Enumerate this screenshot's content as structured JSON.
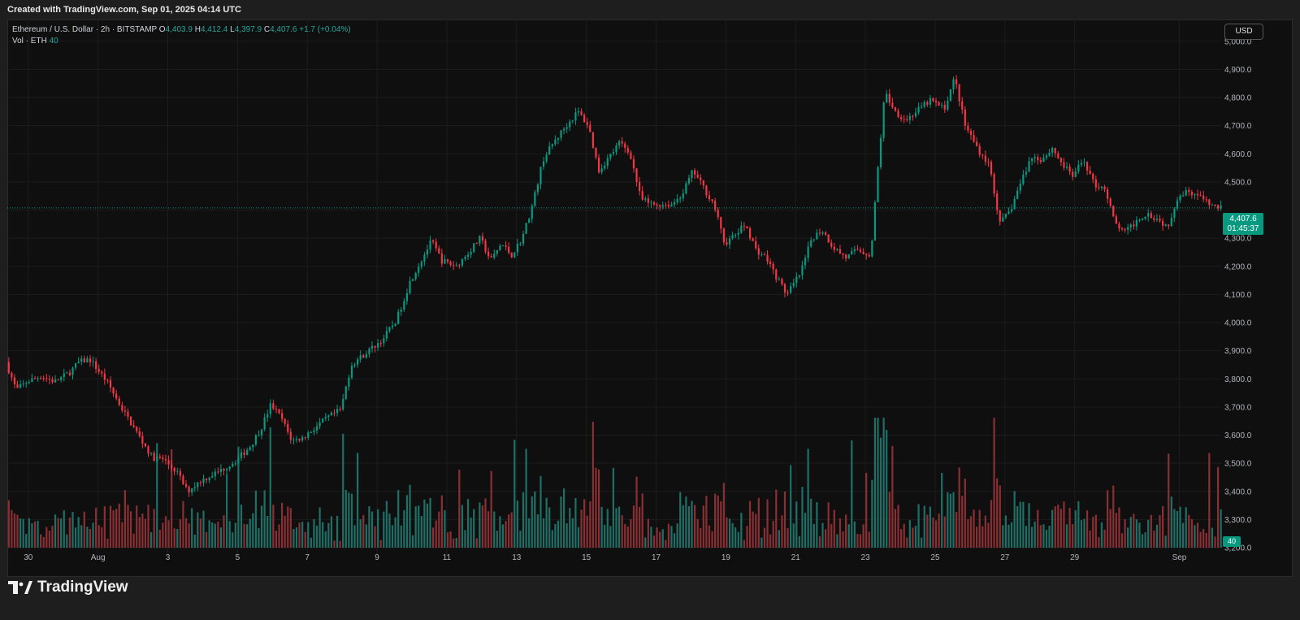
{
  "header": {
    "created_text": "Created with TradingView.com, Sep 01, 2025 04:14 UTC"
  },
  "legend": {
    "symbol": "Ethereum / U.S. Dollar · 2h · BITSTAMP",
    "o_label": "O",
    "o_value": "4,403.9",
    "h_label": "H",
    "h_value": "4,412.4",
    "l_label": "L",
    "l_value": "4,397.9",
    "c_label": "C",
    "c_value": "4,407.6",
    "change": "+1.7 (+0.04%)",
    "vol_label": "Vol · ETH",
    "vol_value": "40"
  },
  "currency_button": "USD",
  "last_price": {
    "price": "4,407.6",
    "countdown": "01:45:37"
  },
  "volume_badge": "40",
  "footer": {
    "brand": "TradingView"
  },
  "colors": {
    "up": "#089981",
    "down": "#f23645",
    "up_vol": "#1f6f66",
    "down_vol": "#8a2f33"
  },
  "chart_data": {
    "type": "candlestick",
    "price_axis": {
      "ticks": [
        5000,
        4900,
        4800,
        4700,
        4600,
        4500,
        4400,
        4300,
        4200,
        4100,
        4000,
        3900,
        3800,
        3700,
        3600,
        3500,
        3400,
        3300,
        3200
      ],
      "tick_labels": [
        "5,000.0",
        "4,900.0",
        "4,800.0",
        "4,700.0",
        "4,600.0",
        "4,500.0",
        "4,300.0",
        "4,200.0",
        "4,100.0",
        "4,000.0",
        "3,900.0",
        "3,800.0",
        "3,700.0",
        "3,600.0",
        "3,500.0",
        "3,400.0",
        "3,300.0",
        "3,200.0"
      ],
      "range": [
        3200,
        5060
      ]
    },
    "time_axis": {
      "labels": [
        "30",
        "Aug",
        "3",
        "5",
        "7",
        "9",
        "11",
        "13",
        "15",
        "17",
        "19",
        "21",
        "23",
        "25",
        "27",
        "29",
        "Sep"
      ],
      "label_days": [
        -2,
        0,
        2,
        4,
        6,
        8,
        10,
        12,
        14,
        16,
        18,
        20,
        22,
        24,
        26,
        28,
        31
      ],
      "day_range": [
        -2.6,
        32.2
      ]
    },
    "last_price": 4407.6,
    "price_path": [
      [
        -2.6,
        3860
      ],
      [
        -2.3,
        3760
      ],
      [
        -2.0,
        3790
      ],
      [
        -1.6,
        3810
      ],
      [
        -1.2,
        3790
      ],
      [
        -0.8,
        3820
      ],
      [
        -0.5,
        3860
      ],
      [
        -0.2,
        3870
      ],
      [
        0.3,
        3790
      ],
      [
        0.7,
        3700
      ],
      [
        1.0,
        3640
      ],
      [
        1.3,
        3580
      ],
      [
        1.6,
        3520
      ],
      [
        1.9,
        3515
      ],
      [
        2.3,
        3470
      ],
      [
        2.6,
        3400
      ],
      [
        3.0,
        3440
      ],
      [
        3.5,
        3470
      ],
      [
        4.0,
        3510
      ],
      [
        4.4,
        3560
      ],
      [
        4.7,
        3620
      ],
      [
        5.0,
        3710
      ],
      [
        5.3,
        3660
      ],
      [
        5.6,
        3580
      ],
      [
        5.9,
        3590
      ],
      [
        6.2,
        3620
      ],
      [
        6.6,
        3660
      ],
      [
        7.0,
        3690
      ],
      [
        7.3,
        3850
      ],
      [
        7.8,
        3900
      ],
      [
        8.2,
        3940
      ],
      [
        8.6,
        4010
      ],
      [
        9.0,
        4150
      ],
      [
        9.3,
        4220
      ],
      [
        9.6,
        4290
      ],
      [
        9.9,
        4220
      ],
      [
        10.3,
        4200
      ],
      [
        10.6,
        4240
      ],
      [
        11.0,
        4300
      ],
      [
        11.3,
        4220
      ],
      [
        11.6,
        4280
      ],
      [
        11.9,
        4240
      ],
      [
        12.2,
        4300
      ],
      [
        12.5,
        4420
      ],
      [
        12.8,
        4580
      ],
      [
        13.1,
        4640
      ],
      [
        13.4,
        4690
      ],
      [
        13.8,
        4750
      ],
      [
        14.1,
        4700
      ],
      [
        14.4,
        4540
      ],
      [
        14.7,
        4590
      ],
      [
        15.0,
        4640
      ],
      [
        15.3,
        4600
      ],
      [
        15.6,
        4440
      ],
      [
        15.9,
        4420
      ],
      [
        16.2,
        4420
      ],
      [
        16.5,
        4420
      ],
      [
        16.8,
        4460
      ],
      [
        17.1,
        4540
      ],
      [
        17.4,
        4480
      ],
      [
        17.7,
        4420
      ],
      [
        18.0,
        4280
      ],
      [
        18.3,
        4310
      ],
      [
        18.6,
        4350
      ],
      [
        18.9,
        4260
      ],
      [
        19.2,
        4230
      ],
      [
        19.5,
        4160
      ],
      [
        19.8,
        4100
      ],
      [
        20.2,
        4180
      ],
      [
        20.5,
        4300
      ],
      [
        20.8,
        4330
      ],
      [
        21.1,
        4270
      ],
      [
        21.5,
        4230
      ],
      [
        21.8,
        4260
      ],
      [
        22.2,
        4240
      ],
      [
        22.4,
        4550
      ],
      [
        22.6,
        4820
      ],
      [
        22.9,
        4750
      ],
      [
        23.2,
        4720
      ],
      [
        23.6,
        4760
      ],
      [
        23.9,
        4790
      ],
      [
        24.3,
        4760
      ],
      [
        24.6,
        4870
      ],
      [
        24.9,
        4700
      ],
      [
        25.3,
        4610
      ],
      [
        25.6,
        4560
      ],
      [
        25.9,
        4350
      ],
      [
        26.2,
        4400
      ],
      [
        26.5,
        4500
      ],
      [
        26.8,
        4590
      ],
      [
        27.1,
        4580
      ],
      [
        27.4,
        4620
      ],
      [
        27.7,
        4560
      ],
      [
        28.0,
        4520
      ],
      [
        28.3,
        4580
      ],
      [
        28.6,
        4490
      ],
      [
        28.9,
        4480
      ],
      [
        29.2,
        4350
      ],
      [
        29.5,
        4320
      ],
      [
        29.8,
        4360
      ],
      [
        30.1,
        4390
      ],
      [
        30.4,
        4370
      ],
      [
        30.7,
        4340
      ],
      [
        31.0,
        4450
      ],
      [
        31.3,
        4470
      ],
      [
        31.6,
        4450
      ],
      [
        31.9,
        4420
      ],
      [
        32.2,
        4407.6
      ]
    ]
  }
}
